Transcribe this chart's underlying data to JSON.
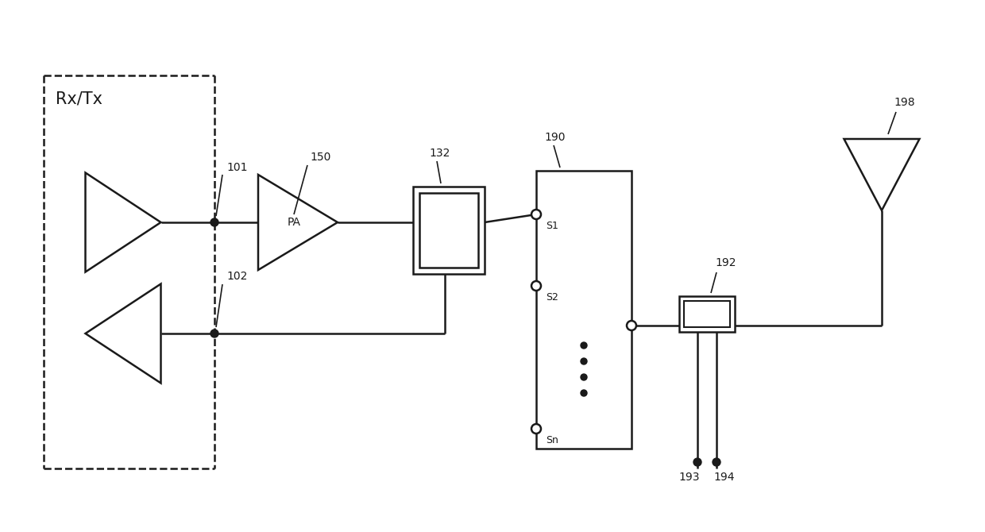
{
  "bg_color": "#ffffff",
  "line_color": "#1a1a1a",
  "figsize": [
    12.4,
    6.7
  ],
  "dpi": 100,
  "labels": {
    "rxtx": "Rx/Tx",
    "pa": "PA",
    "n101": "101",
    "n102": "102",
    "n150": "150",
    "n132": "132",
    "n190": "190",
    "n192": "192",
    "n193": "193",
    "n194": "194",
    "n198": "198",
    "s1": "S1",
    "s2": "S2",
    "sn": "Sn"
  }
}
